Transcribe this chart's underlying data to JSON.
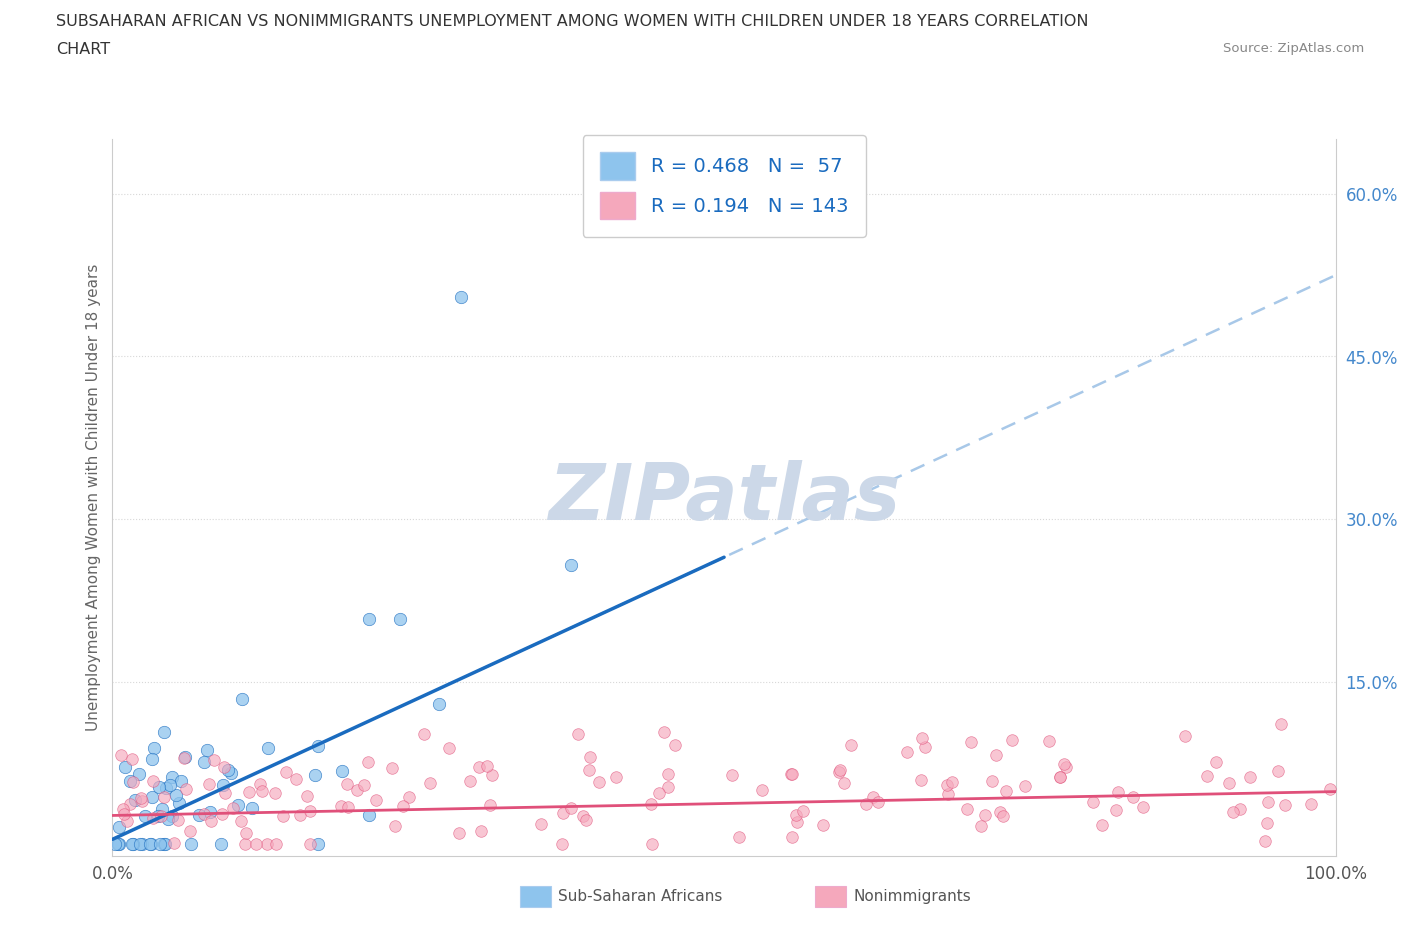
{
  "title_line1": "SUBSAHARAN AFRICAN VS NONIMMIGRANTS UNEMPLOYMENT AMONG WOMEN WITH CHILDREN UNDER 18 YEARS CORRELATION",
  "title_line2": "CHART",
  "source": "Source: ZipAtlas.com",
  "ylabel": "Unemployment Among Women with Children Under 18 years",
  "xmin": 0.0,
  "xmax": 1.0,
  "ymin": -0.01,
  "ymax": 0.65,
  "yticks": [
    0.0,
    0.15,
    0.3,
    0.45,
    0.6
  ],
  "ytick_labels": [
    "",
    "15.0%",
    "30.0%",
    "45.0%",
    "60.0%"
  ],
  "xtick_labels": [
    "0.0%",
    "100.0%"
  ],
  "blue_R": 0.468,
  "blue_N": 57,
  "pink_R": 0.194,
  "pink_N": 143,
  "blue_color": "#8ec4ed",
  "pink_color": "#f5a8bc",
  "blue_line_color": "#1a6bbf",
  "pink_line_color": "#e0507a",
  "dash_color": "#a8c8e8",
  "watermark_color": "#ccd8e8",
  "background_color": "#ffffff",
  "grid_color": "#d8d8d8",
  "legend_text_color": "#1a6bbf",
  "tick_color": "#4488cc",
  "bottom_legend_color": "#555555",
  "blue_trend_slope": 0.52,
  "blue_trend_intercept": 0.005,
  "pink_trend_slope": 0.022,
  "pink_trend_intercept": 0.027
}
